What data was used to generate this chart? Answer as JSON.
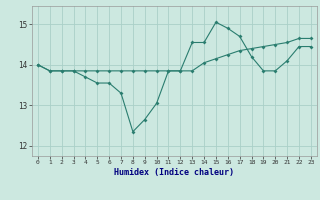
{
  "xlabel": "Humidex (Indice chaleur)",
  "x_values": [
    0,
    1,
    2,
    3,
    4,
    5,
    6,
    7,
    8,
    9,
    10,
    11,
    12,
    13,
    14,
    15,
    16,
    17,
    18,
    19,
    20,
    21,
    22,
    23
  ],
  "line1_y": [
    14.0,
    13.85,
    13.85,
    13.85,
    13.7,
    13.55,
    13.55,
    13.3,
    12.35,
    12.65,
    13.05,
    13.85,
    13.85,
    14.55,
    14.55,
    15.05,
    14.9,
    14.7,
    14.2,
    13.85,
    13.85,
    14.1,
    14.45,
    14.45
  ],
  "line2_y": [
    14.0,
    13.85,
    13.85,
    13.85,
    13.85,
    13.85,
    13.85,
    13.85,
    13.85,
    13.85,
    13.85,
    13.85,
    13.85,
    13.85,
    14.05,
    14.15,
    14.25,
    14.35,
    14.4,
    14.45,
    14.5,
    14.55,
    14.65,
    14.65
  ],
  "line_color": "#2a7d6f",
  "bg_color": "#cce8e0",
  "grid_color": "#aad0c8",
  "ylim": [
    11.75,
    15.45
  ],
  "yticks": [
    12,
    13,
    14,
    15
  ],
  "xticks": [
    0,
    1,
    2,
    3,
    4,
    5,
    6,
    7,
    8,
    9,
    10,
    11,
    12,
    13,
    14,
    15,
    16,
    17,
    18,
    19,
    20,
    21,
    22,
    23
  ]
}
